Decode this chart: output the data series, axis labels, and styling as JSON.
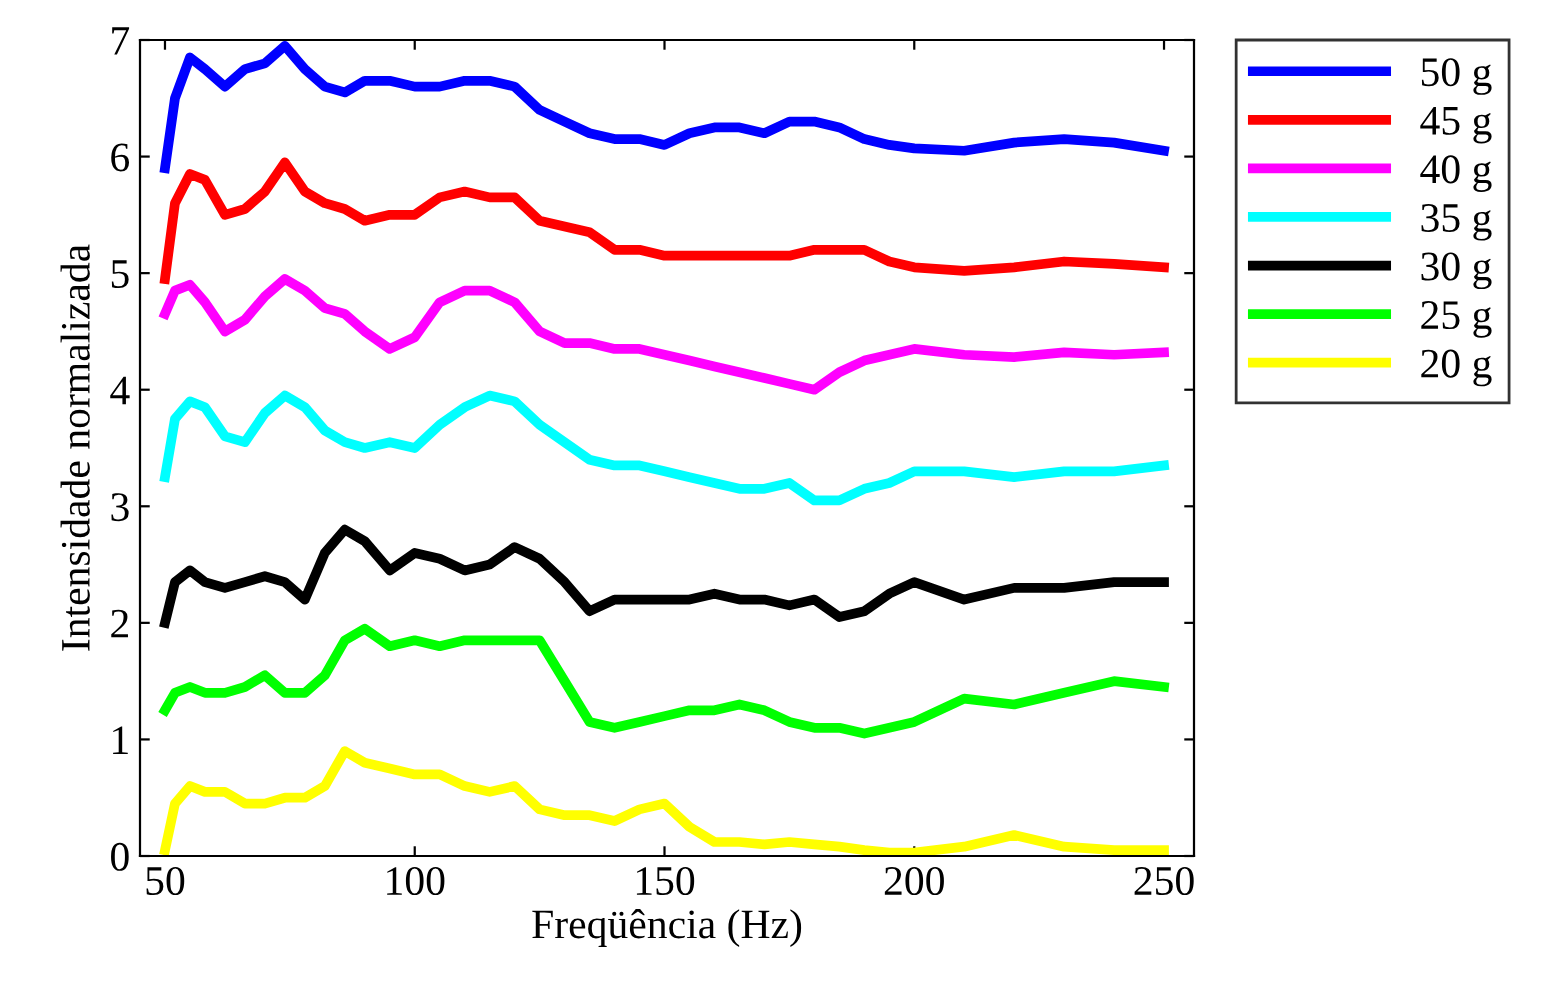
{
  "chart_data": {
    "type": "line",
    "xlabel": "Freqüência (Hz)",
    "ylabel": "Intensidade normalizada",
    "x": [
      50,
      52,
      55,
      58,
      62,
      66,
      70,
      74,
      78,
      82,
      86,
      90,
      95,
      100,
      105,
      110,
      115,
      120,
      125,
      130,
      135,
      140,
      145,
      150,
      155,
      160,
      165,
      170,
      175,
      180,
      185,
      190,
      195,
      200,
      210,
      220,
      230,
      240,
      250
    ],
    "xlim": [
      45,
      256
    ],
    "xticks": [
      50,
      100,
      150,
      200,
      250
    ],
    "ylim": [
      0,
      7
    ],
    "yticks": [
      0,
      1,
      2,
      3,
      4,
      5,
      6,
      7
    ],
    "grid": false,
    "legend": "top right",
    "marker": "none",
    "line_style": "solid",
    "series": [
      {
        "name": "50 g",
        "color": "#0000ff",
        "values": [
          5.9,
          6.5,
          6.85,
          6.75,
          6.6,
          6.75,
          6.8,
          6.95,
          6.75,
          6.6,
          6.55,
          6.65,
          6.65,
          6.6,
          6.6,
          6.65,
          6.65,
          6.6,
          6.4,
          6.3,
          6.2,
          6.15,
          6.15,
          6.1,
          6.2,
          6.25,
          6.25,
          6.2,
          6.3,
          6.3,
          6.25,
          6.15,
          6.1,
          6.07,
          6.05,
          6.12,
          6.15,
          6.12,
          6.05
        ]
      },
      {
        "name": "45 g",
        "color": "#ff0000",
        "values": [
          4.95,
          5.6,
          5.85,
          5.8,
          5.5,
          5.55,
          5.7,
          5.95,
          5.7,
          5.6,
          5.55,
          5.45,
          5.5,
          5.5,
          5.65,
          5.7,
          5.65,
          5.65,
          5.45,
          5.4,
          5.35,
          5.2,
          5.2,
          5.15,
          5.15,
          5.15,
          5.15,
          5.15,
          5.15,
          5.2,
          5.2,
          5.2,
          5.1,
          5.05,
          5.02,
          5.05,
          5.1,
          5.08,
          5.05
        ]
      },
      {
        "name": "40 g",
        "color": "#ff00ff",
        "values": [
          4.65,
          4.85,
          4.9,
          4.75,
          4.5,
          4.6,
          4.8,
          4.95,
          4.85,
          4.7,
          4.65,
          4.5,
          4.35,
          4.45,
          4.75,
          4.85,
          4.85,
          4.75,
          4.5,
          4.4,
          4.4,
          4.35,
          4.35,
          4.3,
          4.25,
          4.2,
          4.15,
          4.1,
          4.05,
          4.0,
          4.15,
          4.25,
          4.3,
          4.35,
          4.3,
          4.28,
          4.32,
          4.3,
          4.32
        ]
      },
      {
        "name": "35 g",
        "color": "#00ffff",
        "values": [
          3.25,
          3.75,
          3.9,
          3.85,
          3.6,
          3.55,
          3.8,
          3.95,
          3.85,
          3.65,
          3.55,
          3.5,
          3.55,
          3.5,
          3.7,
          3.85,
          3.95,
          3.9,
          3.7,
          3.55,
          3.4,
          3.35,
          3.35,
          3.3,
          3.25,
          3.2,
          3.15,
          3.15,
          3.2,
          3.05,
          3.05,
          3.15,
          3.2,
          3.3,
          3.3,
          3.25,
          3.3,
          3.3,
          3.35
        ]
      },
      {
        "name": "30 g",
        "color": "#000000",
        "values": [
          2.0,
          2.35,
          2.45,
          2.35,
          2.3,
          2.35,
          2.4,
          2.35,
          2.2,
          2.6,
          2.8,
          2.7,
          2.45,
          2.6,
          2.55,
          2.45,
          2.5,
          2.65,
          2.55,
          2.35,
          2.1,
          2.2,
          2.2,
          2.2,
          2.2,
          2.25,
          2.2,
          2.2,
          2.15,
          2.2,
          2.05,
          2.1,
          2.25,
          2.35,
          2.2,
          2.3,
          2.3,
          2.35,
          2.35
        ]
      },
      {
        "name": "25 g",
        "color": "#00ff00",
        "values": [
          1.25,
          1.4,
          1.45,
          1.4,
          1.4,
          1.45,
          1.55,
          1.4,
          1.4,
          1.55,
          1.85,
          1.95,
          1.8,
          1.85,
          1.8,
          1.85,
          1.85,
          1.85,
          1.85,
          1.5,
          1.15,
          1.1,
          1.15,
          1.2,
          1.25,
          1.25,
          1.3,
          1.25,
          1.15,
          1.1,
          1.1,
          1.05,
          1.1,
          1.15,
          1.35,
          1.3,
          1.4,
          1.5,
          1.45
        ]
      },
      {
        "name": "20 g",
        "color": "#ffff00",
        "values": [
          0.05,
          0.45,
          0.6,
          0.55,
          0.55,
          0.45,
          0.45,
          0.5,
          0.5,
          0.6,
          0.9,
          0.8,
          0.75,
          0.7,
          0.7,
          0.6,
          0.55,
          0.6,
          0.4,
          0.35,
          0.35,
          0.3,
          0.4,
          0.45,
          0.25,
          0.12,
          0.12,
          0.1,
          0.12,
          0.1,
          0.08,
          0.05,
          0.03,
          0.03,
          0.08,
          0.18,
          0.08,
          0.05,
          0.05
        ]
      }
    ]
  }
}
